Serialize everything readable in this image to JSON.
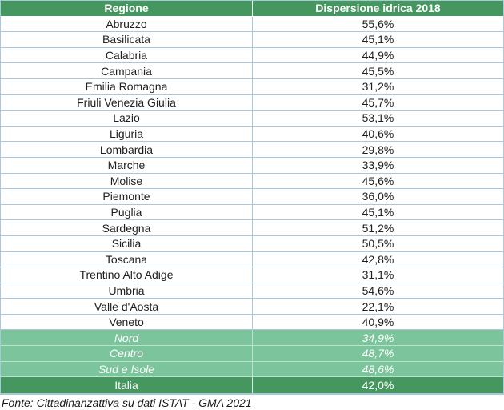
{
  "colors": {
    "header_green": "#45965F",
    "summary_green": "#7CC59C",
    "total_green": "#45965F",
    "border_blue": "#A9C8DD",
    "summary_border": "#BFE0CE",
    "header_text": "#FFFFFF",
    "body_text": "#1F1F1F"
  },
  "table": {
    "columns": [
      "Regione",
      "Dispersione idrica 2018"
    ],
    "rows": [
      {
        "label": "Abruzzo",
        "value": "55,6%",
        "style": "region"
      },
      {
        "label": "Basilicata",
        "value": "45,1%",
        "style": "region"
      },
      {
        "label": "Calabria",
        "value": "44,9%",
        "style": "region"
      },
      {
        "label": "Campania",
        "value": "45,5%",
        "style": "region"
      },
      {
        "label": "Emilia Romagna",
        "value": "31,2%",
        "style": "region"
      },
      {
        "label": "Friuli Venezia Giulia",
        "value": "45,7%",
        "style": "region"
      },
      {
        "label": "Lazio",
        "value": "53,1%",
        "style": "region"
      },
      {
        "label": "Liguria",
        "value": "40,6%",
        "style": "region"
      },
      {
        "label": "Lombardia",
        "value": "29,8%",
        "style": "region"
      },
      {
        "label": "Marche",
        "value": "33,9%",
        "style": "region"
      },
      {
        "label": "Molise",
        "value": "45,6%",
        "style": "region"
      },
      {
        "label": "Piemonte",
        "value": "36,0%",
        "style": "region"
      },
      {
        "label": "Puglia",
        "value": "45,1%",
        "style": "region"
      },
      {
        "label": "Sardegna",
        "value": "51,2%",
        "style": "region"
      },
      {
        "label": "Sicilia",
        "value": "50,5%",
        "style": "region"
      },
      {
        "label": "Toscana",
        "value": "42,8%",
        "style": "region"
      },
      {
        "label": "Trentino Alto Adige",
        "value": "31,1%",
        "style": "region"
      },
      {
        "label": "Umbria",
        "value": "54,6%",
        "style": "region"
      },
      {
        "label": "Valle d'Aosta",
        "value": "22,1%",
        "style": "region"
      },
      {
        "label": "Veneto",
        "value": "40,9%",
        "style": "region"
      },
      {
        "label": "Nord",
        "value": "34,9%",
        "style": "summary"
      },
      {
        "label": "Centro",
        "value": "48,7%",
        "style": "summary"
      },
      {
        "label": "Sud e Isole",
        "value": "48,6%",
        "style": "summary"
      },
      {
        "label": "Italia",
        "value": "42,0%",
        "style": "total"
      }
    ]
  },
  "footer": {
    "source": "Fonte: Cittadinanzattiva su dati ISTAT - GMA 2021"
  },
  "chart_data": {
    "type": "table",
    "title": "Dispersione idrica 2018",
    "columns": [
      "Regione",
      "Dispersione idrica 2018"
    ],
    "categories": [
      "Abruzzo",
      "Basilicata",
      "Calabria",
      "Campania",
      "Emilia Romagna",
      "Friuli Venezia Giulia",
      "Lazio",
      "Liguria",
      "Lombardia",
      "Marche",
      "Molise",
      "Piemonte",
      "Puglia",
      "Sardegna",
      "Sicilia",
      "Toscana",
      "Trentino Alto Adige",
      "Umbria",
      "Valle d'Aosta",
      "Veneto"
    ],
    "values_pct": [
      55.6,
      45.1,
      44.9,
      45.5,
      31.2,
      45.7,
      53.1,
      40.6,
      29.8,
      33.9,
      45.6,
      36.0,
      45.1,
      51.2,
      50.5,
      42.8,
      31.1,
      54.6,
      22.1,
      40.9
    ],
    "aggregates": {
      "Nord": 34.9,
      "Centro": 48.7,
      "Sud e Isole": 48.6,
      "Italia": 42.0
    },
    "source": "Fonte: Cittadinanzattiva su dati ISTAT - GMA 2021"
  }
}
